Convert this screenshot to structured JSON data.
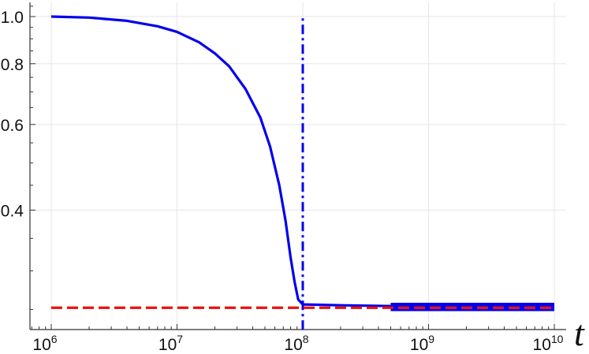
{
  "chart_data": {
    "type": "line",
    "xscale": "log",
    "yscale": "log",
    "xlabel": "t",
    "ylabel": "",
    "xlim": [
      650000.0,
      12000000000.0
    ],
    "ylim": [
      0.227,
      1.07
    ],
    "xticks": [
      {
        "v": 1000000.0,
        "base": "10",
        "exp": "6"
      },
      {
        "v": 10000000.0,
        "base": "10",
        "exp": "7"
      },
      {
        "v": 100000000.0,
        "base": "10",
        "exp": "8"
      },
      {
        "v": 1000000000.0,
        "base": "10",
        "exp": "9"
      },
      {
        "v": 10000000000.0,
        "base": "10",
        "exp": "10"
      }
    ],
    "yticks": [
      {
        "v": 0.4,
        "label": "0.4"
      },
      {
        "v": 0.6,
        "label": "0.6"
      },
      {
        "v": 0.8,
        "label": "0.8"
      },
      {
        "v": 1.0,
        "label": "1.0"
      }
    ],
    "grid": true,
    "series": [
      {
        "style": "solid",
        "color": "#0000ee",
        "x": [
          1000000.0,
          2000000.0,
          4000000.0,
          7000000.0,
          10000000.0,
          15000000.0,
          20000000.0,
          26000000.0,
          35000000.0,
          46000000.0,
          55000000.0,
          65000000.0,
          73000000.0,
          80000000.0,
          86000000.0,
          92000000.0,
          100000000.0,
          200000000.0,
          500000000.0,
          1000000000.0,
          3000000000.0,
          10000000000.0
        ],
        "y": [
          1.0,
          0.995,
          0.98,
          0.955,
          0.93,
          0.885,
          0.84,
          0.79,
          0.71,
          0.62,
          0.54,
          0.45,
          0.38,
          0.32,
          0.285,
          0.262,
          0.256,
          0.255,
          0.254,
          0.253,
          0.254,
          0.255
        ],
        "noisy_from": 500000000.0
      },
      {
        "style": "dashed",
        "color": "#ee1111",
        "x": [
          1000000.0,
          10000000000.0
        ],
        "y": [
          0.252,
          0.252
        ]
      },
      {
        "style": "dashdot",
        "color": "#0000ee",
        "x": [
          100000000.0,
          100000000.0
        ],
        "y": [
          0.227,
          1.0
        ]
      }
    ]
  }
}
